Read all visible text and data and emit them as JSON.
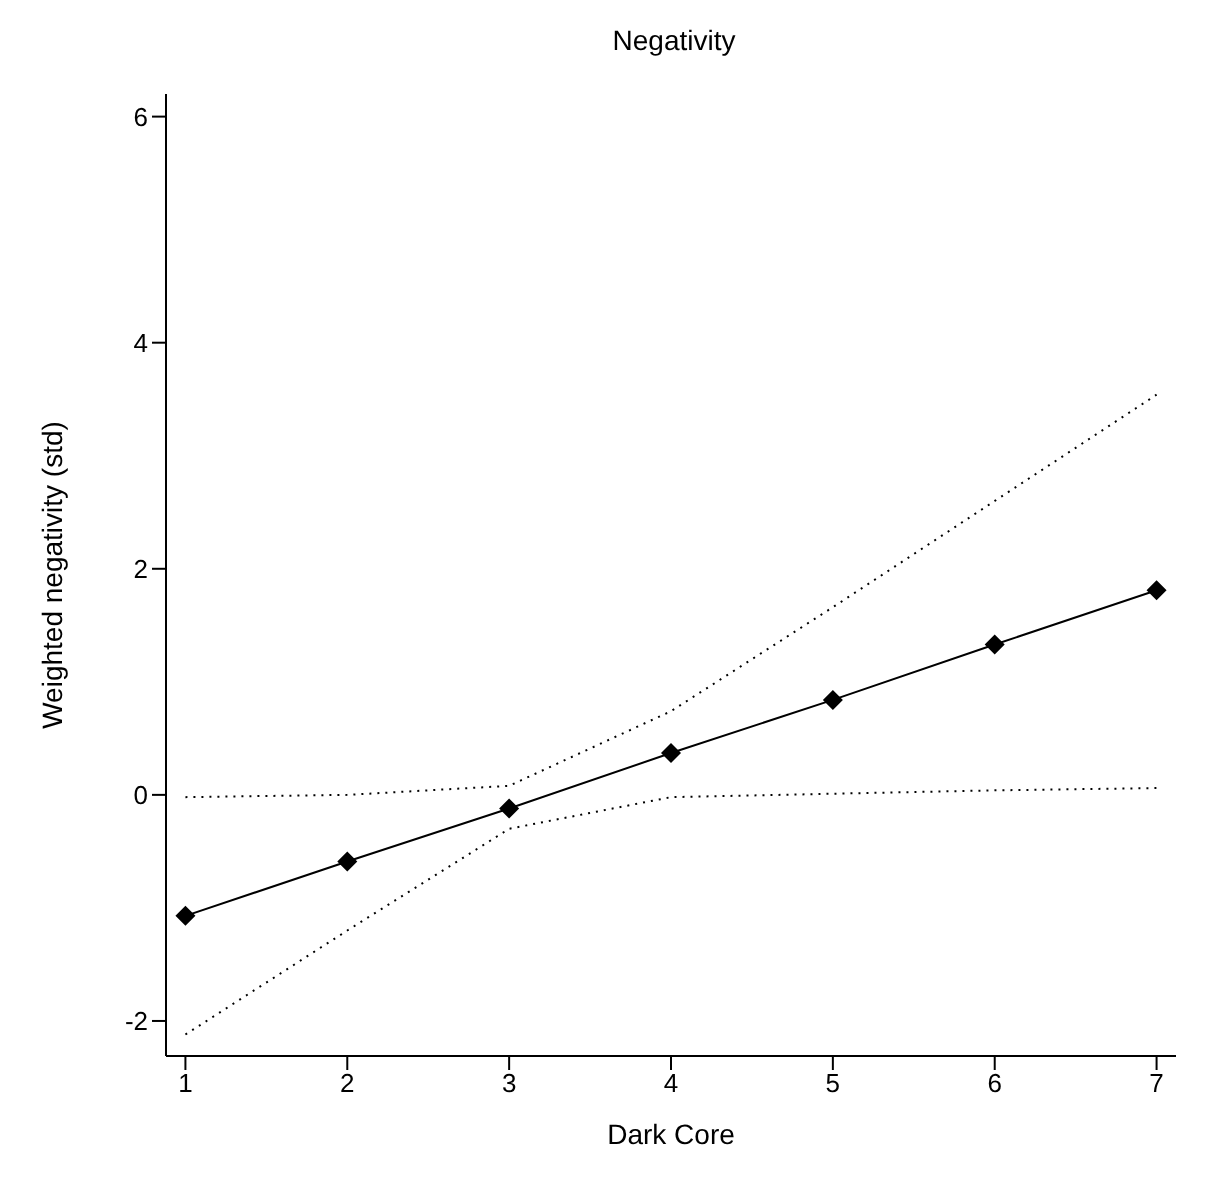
{
  "chart_data": {
    "type": "line",
    "title": "Negativity",
    "xlabel": "Dark Core",
    "ylabel": "Weighted negativity (std)",
    "x": [
      1,
      2,
      3,
      4,
      5,
      6,
      7
    ],
    "series": [
      {
        "color": "#000000",
        "values": [
          -1.07,
          -0.59,
          -0.12,
          0.37,
          0.84,
          1.33,
          1.81
        ]
      },
      {
        "color": "#000000",
        "values": [
          -2.12,
          -1.2,
          -0.3,
          -0.02,
          0.01,
          0.04,
          0.06
        ],
        "line_style": "dotted",
        "marker": "none"
      },
      {
        "color": "#000000",
        "values": [
          -0.02,
          0,
          0.08,
          0.74,
          1.66,
          2.6,
          3.54
        ],
        "line_style": "dotted",
        "marker": "none"
      }
    ],
    "xlim": [
      0.88,
      7.12
    ],
    "xticks": [
      1,
      2,
      3,
      4,
      5,
      6,
      7
    ],
    "ylim": [
      -2.31,
      6.2
    ],
    "yticks": [
      -2,
      0,
      2,
      4,
      6
    ],
    "grid": false,
    "legend": false,
    "marker": "diamond",
    "line_style": "solid"
  }
}
